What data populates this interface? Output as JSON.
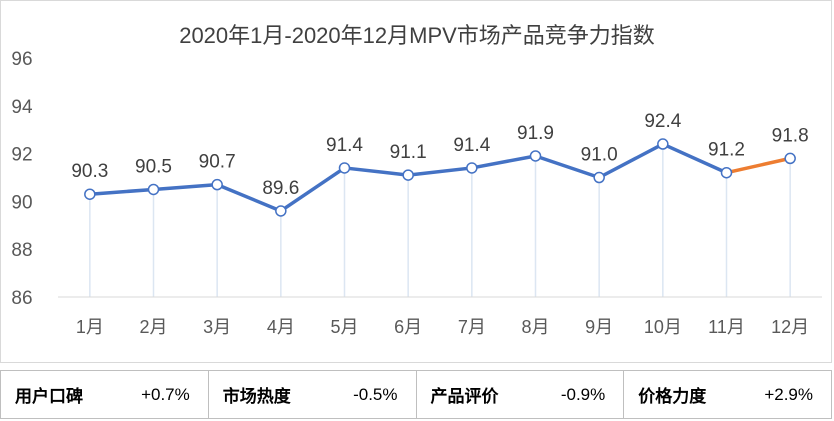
{
  "chart_data": {
    "type": "line",
    "title": "2020年1月-2020年12月MPV市场产品竞争力指数",
    "categories": [
      "1月",
      "2月",
      "3月",
      "4月",
      "5月",
      "6月",
      "7月",
      "8月",
      "9月",
      "10月",
      "11月",
      "12月"
    ],
    "values": [
      90.3,
      90.5,
      90.7,
      89.6,
      91.4,
      91.1,
      91.4,
      91.9,
      91.0,
      92.4,
      91.2,
      91.8
    ],
    "data_labels": [
      "90.3",
      "90.5",
      "90.7",
      "89.6",
      "91.4",
      "91.1",
      "91.4",
      "91.9",
      "91.0",
      "92.4",
      "91.2",
      "91.8"
    ],
    "ylim": [
      86,
      96
    ],
    "yticks": [
      "86",
      "88",
      "90",
      "92",
      "94",
      "96"
    ],
    "xlabel": "",
    "ylabel": "",
    "series_color": "#4472c4",
    "highlight_color": "#ed7d31",
    "highlight_segment_from": 10
  },
  "metrics": [
    {
      "label": "用户口碑",
      "value": "+0.7%"
    },
    {
      "label": "市场热度",
      "value": "-0.5%"
    },
    {
      "label": "产品评价",
      "value": "-0.9%"
    },
    {
      "label": "价格力度",
      "value": "+2.9%"
    }
  ]
}
